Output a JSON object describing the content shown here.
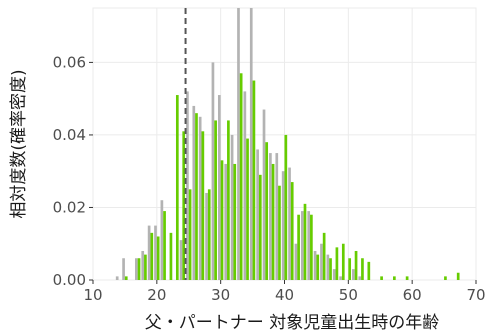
{
  "chart_data": {
    "type": "bar",
    "title": "",
    "xlabel": "父・パートナー 対象児童出生時の年齢",
    "ylabel": "相対度数(確率密度)",
    "xlim": [
      10,
      70
    ],
    "ylim": [
      0,
      0.075
    ],
    "x_ticks": [
      10,
      20,
      30,
      40,
      50,
      60,
      70
    ],
    "y_ticks": [
      0.0,
      0.02,
      0.04,
      0.06
    ],
    "y_tick_labels": [
      "0.00",
      "0.02",
      "0.04",
      "0.06"
    ],
    "x_tick_labels": [
      "10",
      "20",
      "30",
      "40",
      "50",
      "60",
      "70"
    ],
    "grid": true,
    "legend": "none",
    "reference_line": {
      "x": 24.5,
      "style": "dashed",
      "color": "#555555"
    },
    "colors": {
      "gray": "#b3b3b3",
      "green": "#66cc00",
      "panel": "#ffffff",
      "grid": "#ebebeb"
    },
    "x": [
      14,
      15,
      16,
      17,
      18,
      19,
      20,
      21,
      22,
      23,
      24,
      25,
      26,
      27,
      28,
      29,
      30,
      31,
      32,
      33,
      34,
      35,
      36,
      37,
      38,
      39,
      40,
      41,
      42,
      43,
      44,
      45,
      46,
      47,
      48,
      49,
      50,
      51,
      52,
      53,
      54,
      55,
      56,
      57,
      58,
      59,
      60,
      61,
      62,
      63,
      64,
      65,
      66,
      67,
      68
    ],
    "series": [
      {
        "color": "#b3b3b3",
        "values": [
          0.001,
          0.006,
          0.0,
          0.006,
          0.008,
          0.015,
          0.015,
          0.022,
          0.0,
          0.0,
          0.011,
          0.052,
          0.048,
          0.045,
          0.024,
          0.06,
          0.051,
          0.032,
          0.04,
          0.075,
          0.052,
          0.075,
          0.036,
          0.047,
          0.035,
          0.035,
          0.03,
          0.031,
          0.01,
          0.019,
          0.019,
          0.008,
          0.01,
          0.007,
          0.003,
          0.001,
          0.0,
          0.003,
          0.001,
          0.0,
          0.0,
          0.0,
          0.0,
          0.0,
          0.0,
          0.0,
          0.0,
          0.0,
          0.0,
          0.0,
          0.0,
          0.0,
          0.0,
          0.0,
          0.0
        ]
      },
      {
        "color": "#66cc00",
        "values": [
          0.0,
          0.001,
          0.0,
          0.006,
          0.007,
          0.013,
          0.012,
          0.019,
          0.013,
          0.051,
          0.041,
          0.025,
          0.046,
          0.041,
          0.025,
          0.044,
          0.033,
          0.044,
          0.032,
          0.057,
          0.039,
          0.055,
          0.029,
          0.038,
          0.032,
          0.026,
          0.04,
          0.027,
          0.018,
          0.021,
          0.018,
          0.007,
          0.013,
          0.006,
          0.009,
          0.01,
          0.006,
          0.008,
          0.006,
          0.0,
          0.0,
          0.001,
          0.0,
          0.0,
          0.0,
          0.0,
          0.0,
          0.0,
          0.0,
          0.0,
          0.0,
          0.0,
          0.0,
          0.0,
          0.0
        ]
      }
    ],
    "extra_green_points": [
      [
        53,
        0.005
      ],
      [
        57,
        0.001
      ],
      [
        59,
        0.001
      ],
      [
        65,
        0.001
      ],
      [
        67,
        0.002
      ]
    ]
  }
}
